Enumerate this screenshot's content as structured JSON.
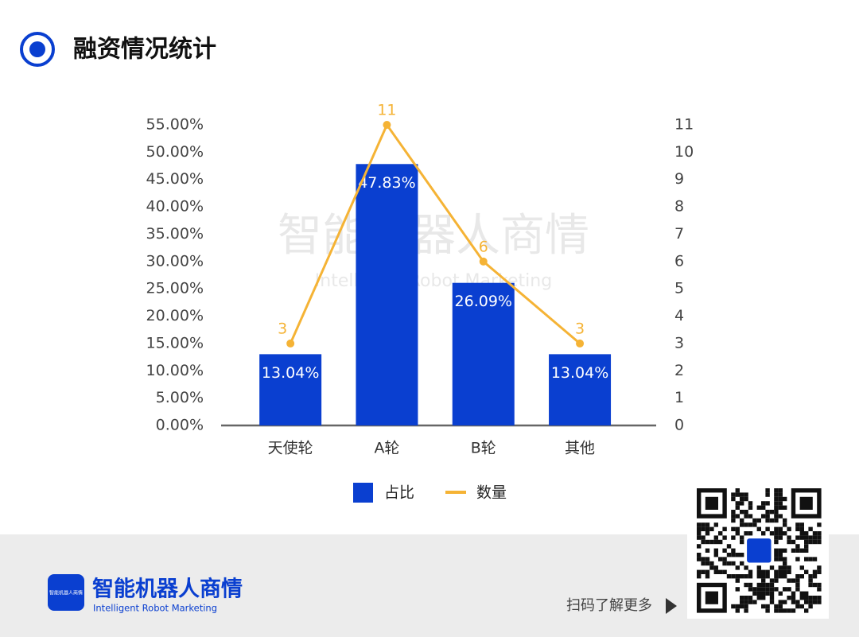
{
  "header": {
    "title": "融资情况统计"
  },
  "chart_data": {
    "type": "bar",
    "categories": [
      "天使轮",
      "A轮",
      "B轮",
      "其他"
    ],
    "series": [
      {
        "name": "占比",
        "type": "bar",
        "color": "#0a3fd0",
        "values": [
          13.04,
          47.83,
          26.09,
          13.04
        ],
        "value_labels": [
          "13.04%",
          "47.83%",
          "26.09%",
          "13.04%"
        ]
      },
      {
        "name": "数量",
        "type": "line",
        "axis": "y2",
        "color": "#f5b335",
        "values": [
          3,
          11,
          6,
          3
        ]
      }
    ],
    "ylim": [
      0,
      55
    ],
    "yticks": [
      {
        "value": 0,
        "label": "0.00%"
      },
      {
        "value": 5,
        "label": "5.00%"
      },
      {
        "value": 10,
        "label": "10.00%"
      },
      {
        "value": 15,
        "label": "15.00%"
      },
      {
        "value": 20,
        "label": "20.00%"
      },
      {
        "value": 25,
        "label": "25.00%"
      },
      {
        "value": 30,
        "label": "30.00%"
      },
      {
        "value": 35,
        "label": "35.00%"
      },
      {
        "value": 40,
        "label": "40.00%"
      },
      {
        "value": 45,
        "label": "45.00%"
      },
      {
        "value": 50,
        "label": "50.00%"
      },
      {
        "value": 55,
        "label": "55.00%"
      }
    ],
    "y2lim": [
      0,
      11
    ],
    "y2ticks": [
      0,
      1,
      2,
      3,
      4,
      5,
      6,
      7,
      8,
      9,
      10,
      11
    ],
    "grid": false,
    "legend": "bottom",
    "watermark": {
      "title": "智能机器人商情",
      "subtitle": "Intelligent Robot Marketing"
    }
  },
  "footer": {
    "brand": "智能机器人商情",
    "brand_en": "Intelligent Robot Marketing",
    "logo_text": "智能机器人商情",
    "qr_caption": "扫码了解更多"
  }
}
